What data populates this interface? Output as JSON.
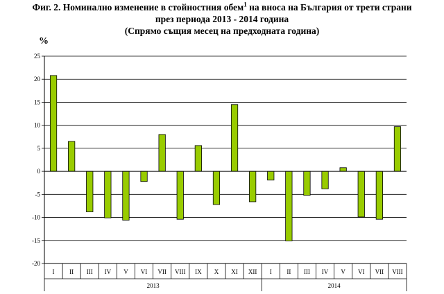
{
  "title": {
    "line1_a": "Фиг. 2. Номинално изменение в стойностния обем",
    "line1_sup": "1",
    "line1_b": " на вноса на България от трети страни",
    "line2": "през периода 2013 - 2014 година",
    "line3": "(Спрямо същия месец на предходната година)"
  },
  "chart_data": {
    "type": "bar",
    "ylabel": "%",
    "ylim": [
      -20,
      25
    ],
    "yticks": [
      25,
      20,
      15,
      10,
      5,
      0,
      -5,
      -10,
      -15,
      -20
    ],
    "grid": true,
    "categories": [
      "I",
      "II",
      "III",
      "IV",
      "V",
      "VI",
      "VII",
      "VIII",
      "IX",
      "X",
      "XI",
      "XII",
      "I",
      "II",
      "III",
      "IV",
      "V",
      "VI",
      "VII",
      "VIII"
    ],
    "groups": [
      {
        "label": "2013",
        "count": 12
      },
      {
        "label": "2014",
        "count": 8
      }
    ],
    "values": [
      20.8,
      6.5,
      -8.8,
      -10.1,
      -10.6,
      -2.2,
      8.0,
      -10.4,
      5.6,
      -7.2,
      14.5,
      -6.6,
      -1.9,
      -15.1,
      -5.2,
      -3.8,
      0.8,
      -9.9,
      -10.4,
      9.7
    ],
    "bar_color": "#99cc00"
  }
}
